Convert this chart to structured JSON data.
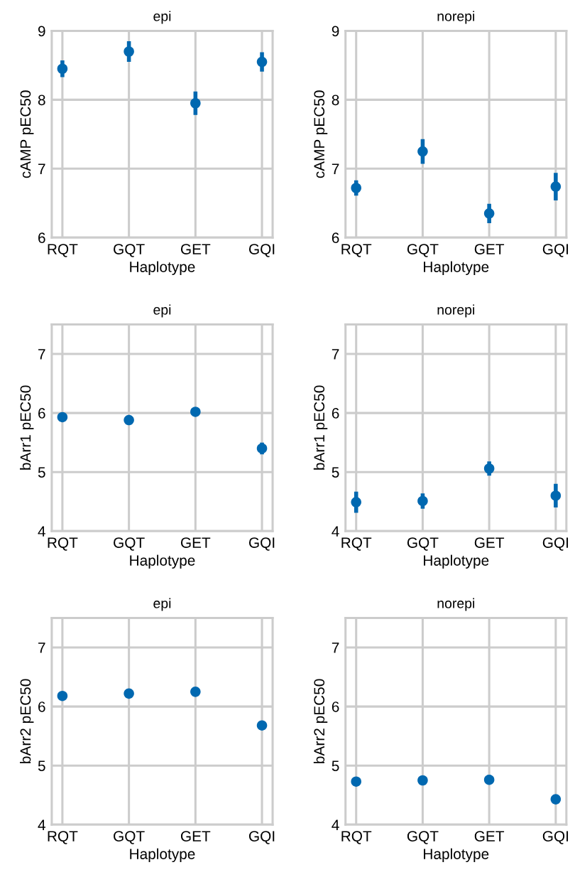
{
  "chart_data": [
    {
      "type": "scatter",
      "title": "epi",
      "xlabel": "Haplotype",
      "ylabel": "cAMP pEC50",
      "categories": [
        "RQT",
        "GQT",
        "GET",
        "GQI"
      ],
      "ylim": [
        6,
        9
      ],
      "yticks": [
        6,
        7,
        8,
        9
      ],
      "grid": true,
      "marker": "circle",
      "series": [
        {
          "color": "#0068b0",
          "values": [
            8.45,
            8.7,
            7.95,
            8.55
          ],
          "errors": [
            0.12,
            0.15,
            0.17,
            0.14
          ]
        }
      ]
    },
    {
      "type": "scatter",
      "title": "norepi",
      "xlabel": "Haplotype",
      "ylabel": "cAMP pEC50",
      "categories": [
        "RQT",
        "GQT",
        "GET",
        "GQI"
      ],
      "ylim": [
        6,
        9
      ],
      "yticks": [
        6,
        7,
        8,
        9
      ],
      "grid": true,
      "marker": "circle",
      "series": [
        {
          "color": "#0068b0",
          "values": [
            6.72,
            7.25,
            6.35,
            6.74
          ],
          "errors": [
            0.11,
            0.18,
            0.14,
            0.2
          ]
        }
      ]
    },
    {
      "type": "scatter",
      "title": "epi",
      "xlabel": "Haplotype",
      "ylabel": "bArr1 pEC50",
      "categories": [
        "RQT",
        "GQT",
        "GET",
        "GQI"
      ],
      "ylim": [
        4,
        7.5
      ],
      "yticks": [
        4,
        5,
        6,
        7
      ],
      "grid": true,
      "marker": "circle",
      "series": [
        {
          "color": "#0068b0",
          "values": [
            5.93,
            5.88,
            6.02,
            5.4
          ],
          "errors": [
            null,
            null,
            0.04,
            0.1
          ]
        }
      ]
    },
    {
      "type": "scatter",
      "title": "norepi",
      "xlabel": "Haplotype",
      "ylabel": "bArr1 pEC50",
      "categories": [
        "RQT",
        "GQT",
        "GET",
        "GQI"
      ],
      "ylim": [
        4,
        7.5
      ],
      "yticks": [
        4,
        5,
        6,
        7
      ],
      "grid": true,
      "marker": "circle",
      "series": [
        {
          "color": "#0068b0",
          "values": [
            4.49,
            4.51,
            5.06,
            4.6
          ],
          "errors": [
            0.18,
            0.13,
            0.12,
            0.2
          ]
        }
      ]
    },
    {
      "type": "scatter",
      "title": "epi",
      "xlabel": "Haplotype",
      "ylabel": "bArr2 pEC50",
      "categories": [
        "RQT",
        "GQT",
        "GET",
        "GQI"
      ],
      "ylim": [
        4,
        7.5
      ],
      "yticks": [
        4,
        5,
        6,
        7
      ],
      "grid": true,
      "marker": "circle",
      "series": [
        {
          "color": "#0068b0",
          "values": [
            6.18,
            6.22,
            6.25,
            5.68
          ]
        }
      ]
    },
    {
      "type": "scatter",
      "title": "norepi",
      "xlabel": "Haplotype",
      "ylabel": "bArr2 pEC50",
      "categories": [
        "RQT",
        "GQT",
        "GET",
        "GQI"
      ],
      "ylim": [
        4,
        7.5
      ],
      "yticks": [
        4,
        5,
        6,
        7
      ],
      "grid": true,
      "marker": "circle",
      "series": [
        {
          "color": "#0068b0",
          "values": [
            4.73,
            4.75,
            4.76,
            4.43
          ],
          "errors": [
            null,
            null,
            0.08,
            null
          ]
        }
      ]
    }
  ]
}
